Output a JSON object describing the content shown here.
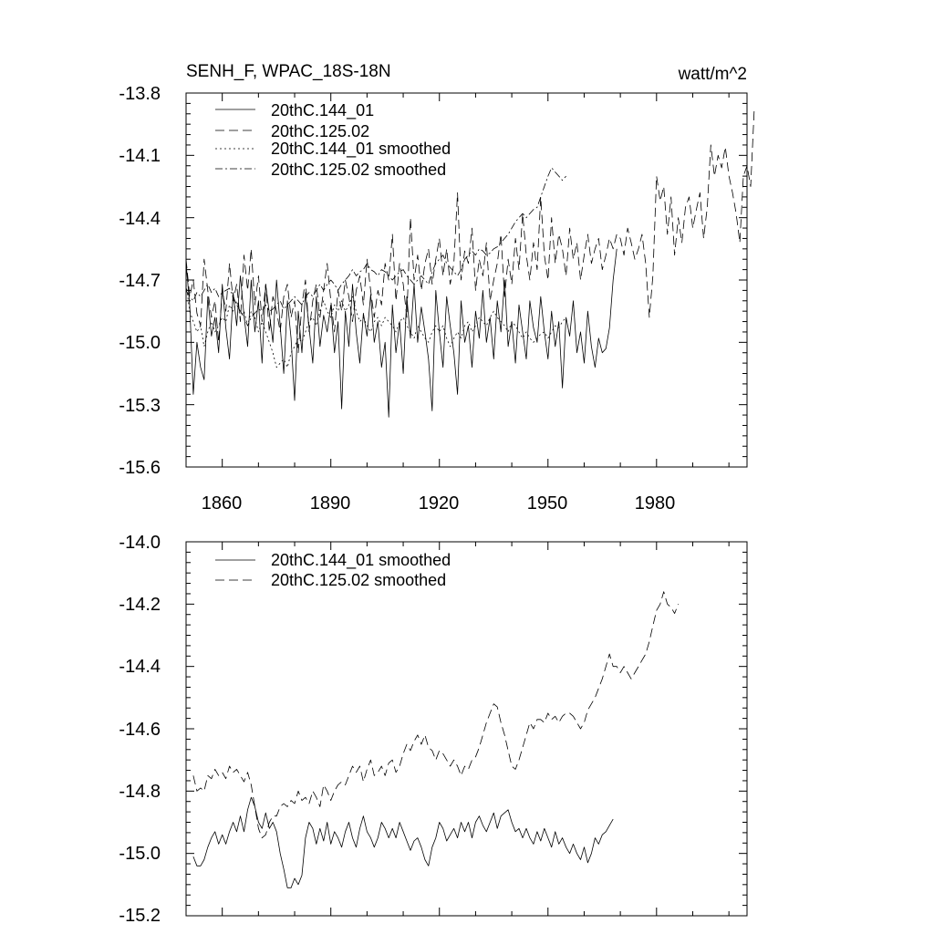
{
  "chart_data": [
    {
      "type": "line",
      "title": "SENH_F, WPAC_18S-18N",
      "units": "watt/m^2",
      "xlim": [
        1850,
        2005
      ],
      "ylim": [
        -15.6,
        -13.8
      ],
      "x_ticks": [
        1860,
        1890,
        1920,
        1950,
        1980
      ],
      "y_ticks": [
        -13.8,
        -14.1,
        -14.4,
        -14.7,
        -15.0,
        -15.3,
        -15.6
      ],
      "y_tick_labels": [
        "-13.8",
        "-14.1",
        "-14.4",
        "-14.7",
        "-15.0",
        "-15.3",
        "-15.6"
      ],
      "x_tick_labels": [
        "1860",
        "1890",
        "1920",
        "1950",
        "1980"
      ],
      "legend_position": "top-left",
      "series": [
        {
          "name": "20thC.144_01",
          "style": "solid",
          "x_start": 1850,
          "values": [
            -14.62,
            -14.82,
            -15.25,
            -15.0,
            -15.12,
            -15.18,
            -14.78,
            -14.97,
            -14.88,
            -15.05,
            -14.72,
            -14.93,
            -15.08,
            -14.76,
            -14.92,
            -14.68,
            -14.87,
            -15.02,
            -14.7,
            -14.95,
            -14.8,
            -15.1,
            -14.72,
            -14.86,
            -15.0,
            -14.7,
            -14.92,
            -15.15,
            -14.8,
            -14.98,
            -15.28,
            -14.85,
            -15.05,
            -14.76,
            -14.93,
            -15.1,
            -14.78,
            -15.02,
            -14.87,
            -14.95,
            -14.82,
            -15.05,
            -14.9,
            -15.32,
            -14.85,
            -15.02,
            -14.72,
            -14.95,
            -15.1,
            -14.86,
            -14.97,
            -14.77,
            -15.0,
            -14.9,
            -15.12,
            -15.0,
            -15.36,
            -14.82,
            -15.05,
            -14.9,
            -15.15,
            -14.78,
            -14.98,
            -14.72,
            -15.0,
            -14.83,
            -14.95,
            -15.08,
            -15.33,
            -14.75,
            -14.95,
            -15.12,
            -14.78,
            -14.92,
            -15.05,
            -15.25,
            -14.8,
            -15.0,
            -14.92,
            -15.12,
            -14.85,
            -14.98,
            -14.75,
            -15.0,
            -14.88,
            -15.08,
            -14.8,
            -14.95,
            -14.7,
            -15.02,
            -14.9,
            -15.1,
            -14.82,
            -14.95,
            -15.08,
            -14.8,
            -14.93,
            -15.0,
            -14.78,
            -14.95,
            -15.08,
            -14.85,
            -15.02,
            -14.9,
            -15.22,
            -14.88,
            -14.97,
            -14.8,
            -15.05,
            -14.95,
            -15.1,
            -14.85,
            -15.02,
            -15.12,
            -14.98,
            -15.05,
            -15.03,
            -14.93,
            -14.7,
            -14.55
          ]
        },
        {
          "name": "20thC.125.02",
          "style": "dashed",
          "x_start": 1850,
          "values": [
            -14.6,
            -14.78,
            -14.7,
            -14.86,
            -14.92,
            -14.6,
            -14.75,
            -14.88,
            -14.8,
            -15.0,
            -14.75,
            -14.85,
            -14.62,
            -14.8,
            -14.72,
            -14.9,
            -14.58,
            -14.75,
            -14.55,
            -14.82,
            -14.68,
            -14.9,
            -14.72,
            -14.95,
            -14.78,
            -14.85,
            -14.95,
            -14.78,
            -14.72,
            -14.88,
            -14.8,
            -15.05,
            -14.82,
            -14.7,
            -14.95,
            -14.8,
            -14.72,
            -14.88,
            -14.75,
            -14.62,
            -14.8,
            -14.95,
            -14.75,
            -14.85,
            -14.7,
            -14.78,
            -14.9,
            -14.75,
            -14.68,
            -14.82,
            -14.6,
            -14.75,
            -14.88,
            -14.75,
            -14.82,
            -14.62,
            -14.7,
            -14.48,
            -14.8,
            -14.62,
            -14.72,
            -14.88,
            -14.4,
            -14.7,
            -14.58,
            -14.75,
            -14.62,
            -14.55,
            -14.72,
            -14.6,
            -14.5,
            -14.68,
            -14.55,
            -14.72,
            -14.62,
            -14.28,
            -14.7,
            -14.56,
            -14.62,
            -14.45,
            -14.75,
            -14.6,
            -14.68,
            -14.52,
            -14.8,
            -14.7,
            -14.62,
            -14.48,
            -14.78,
            -14.6,
            -14.72,
            -14.5,
            -14.65,
            -14.38,
            -14.58,
            -14.7,
            -14.52,
            -14.65,
            -14.3,
            -14.58,
            -14.7,
            -14.4,
            -14.62,
            -14.48,
            -14.55,
            -14.68,
            -14.45,
            -14.6,
            -14.52,
            -14.7,
            -14.58,
            -14.48,
            -14.62,
            -14.55,
            -14.5,
            -14.65,
            -14.58,
            -14.5,
            -14.55,
            -14.48,
            -14.5,
            -14.58,
            -14.45,
            -14.52,
            -14.6,
            -14.55,
            -14.48,
            -14.62,
            -14.88,
            -14.68,
            -14.2,
            -14.32,
            -14.25,
            -14.48,
            -14.3,
            -14.58,
            -14.4,
            -14.52,
            -14.35,
            -14.3,
            -14.45,
            -14.36,
            -14.28,
            -14.5,
            -14.35,
            -14.05,
            -14.2,
            -14.1,
            -14.16,
            -14.06,
            -14.2,
            -14.28,
            -14.38,
            -14.52,
            -14.2,
            -14.15,
            -14.25,
            -13.88
          ]
        },
        {
          "name": "20thC.144_01 smoothed",
          "style": "dotted",
          "x_start": 1850,
          "values": [
            -14.72,
            -14.85,
            -14.9,
            -14.95,
            -14.92,
            -15.02,
            -14.95,
            -14.9,
            -14.95,
            -14.92,
            -14.88,
            -14.9,
            -14.82,
            -14.85,
            -14.8,
            -14.88,
            -14.85,
            -14.92,
            -14.85,
            -14.88,
            -14.95,
            -14.9,
            -14.95,
            -15.0,
            -15.05,
            -15.12,
            -15.1,
            -15.08,
            -15.12,
            -15.05,
            -15.02,
            -14.98,
            -15.0,
            -14.95,
            -14.9,
            -14.88,
            -14.92,
            -14.85,
            -14.8,
            -14.85,
            -14.88,
            -14.82,
            -14.85,
            -14.8,
            -14.85,
            -14.82,
            -14.78,
            -14.85,
            -14.9,
            -14.88,
            -14.92,
            -14.95,
            -14.9,
            -14.88,
            -14.92,
            -14.88,
            -14.9,
            -14.92,
            -14.95,
            -14.9,
            -14.88,
            -14.92,
            -14.95,
            -14.98,
            -14.92,
            -14.95,
            -14.98,
            -15.0,
            -14.95,
            -14.92,
            -14.95,
            -14.92,
            -14.98,
            -15.02,
            -14.98,
            -14.95,
            -14.98,
            -14.92,
            -14.9,
            -14.95,
            -14.92,
            -14.88,
            -14.9,
            -14.92,
            -14.88,
            -14.85,
            -14.88,
            -14.9,
            -14.92,
            -14.95,
            -14.9,
            -14.92,
            -14.95,
            -14.98,
            -14.95,
            -14.98,
            -15.0,
            -14.98,
            -14.96,
            -14.95,
            -14.98,
            -14.95,
            -14.92,
            -14.93,
            -14.9,
            -14.88
          ]
        },
        {
          "name": "20thC.125.02 smoothed",
          "style": "dashdot",
          "x_start": 1850,
          "values": [
            -14.75,
            -14.78,
            -14.8,
            -14.76,
            -14.78,
            -14.75,
            -14.72,
            -14.76,
            -14.74,
            -14.78,
            -14.76,
            -14.75,
            -14.74,
            -14.78,
            -14.82,
            -14.85,
            -14.88,
            -14.92,
            -14.88,
            -14.86,
            -14.84,
            -14.85,
            -14.82,
            -14.85,
            -14.84,
            -14.82,
            -14.8,
            -14.84,
            -14.82,
            -14.8,
            -14.78,
            -14.8,
            -14.82,
            -14.78,
            -14.76,
            -14.78,
            -14.75,
            -14.72,
            -14.75,
            -14.72,
            -14.7,
            -14.72,
            -14.75,
            -14.72,
            -14.7,
            -14.68,
            -14.65,
            -14.68,
            -14.66,
            -14.65,
            -14.62,
            -14.65,
            -14.66,
            -14.68,
            -14.65,
            -14.66,
            -14.68,
            -14.7,
            -14.68,
            -14.66,
            -14.65,
            -14.68,
            -14.7,
            -14.72,
            -14.7,
            -14.68,
            -14.7,
            -14.72,
            -14.66,
            -14.62,
            -14.6,
            -14.58,
            -14.62,
            -14.64,
            -14.66,
            -14.68,
            -14.65,
            -14.6,
            -14.58,
            -14.56,
            -14.58,
            -14.55,
            -14.56,
            -14.58,
            -14.57,
            -14.55,
            -14.54,
            -14.52,
            -14.5,
            -14.48,
            -14.45,
            -14.42,
            -14.4,
            -14.38,
            -14.4,
            -14.38,
            -14.36,
            -14.35,
            -14.3,
            -14.25,
            -14.2,
            -14.16,
            -14.18,
            -14.2,
            -14.22,
            -14.2
          ]
        }
      ]
    },
    {
      "type": "line",
      "title": "",
      "xlim": [
        1850,
        2005
      ],
      "ylim": [
        -15.2,
        -14.0
      ],
      "x_ticks": [
        1860,
        1890,
        1920,
        1950,
        1980
      ],
      "y_ticks": [
        -14.0,
        -14.2,
        -14.4,
        -14.6,
        -14.8,
        -15.0,
        -15.2
      ],
      "y_tick_labels": [
        "-14.0",
        "-14.2",
        "-14.4",
        "-14.6",
        "-14.8",
        "-15.0",
        "-15.2"
      ],
      "legend_position": "top-left",
      "series": [
        {
          "name": "20thC.144_01 smoothed",
          "style": "solid",
          "x_start": 1852,
          "values": [
            -15.01,
            -15.04,
            -15.04,
            -15.02,
            -14.98,
            -14.95,
            -14.93,
            -14.97,
            -14.94,
            -14.97,
            -14.93,
            -14.9,
            -14.93,
            -14.88,
            -14.93,
            -14.86,
            -14.82,
            -14.85,
            -14.9,
            -14.92,
            -14.87,
            -14.92,
            -14.9,
            -14.93,
            -15.0,
            -15.05,
            -15.11,
            -15.11,
            -15.08,
            -15.1,
            -15.07,
            -14.95,
            -14.9,
            -14.92,
            -14.97,
            -14.92,
            -14.96,
            -14.9,
            -14.97,
            -14.93,
            -14.95,
            -14.98,
            -14.93,
            -14.9,
            -14.95,
            -14.98,
            -14.92,
            -14.88,
            -14.93,
            -14.95,
            -14.98,
            -14.95,
            -14.9,
            -14.92,
            -14.95,
            -14.92,
            -14.95,
            -14.9,
            -14.93,
            -14.96,
            -14.99,
            -14.96,
            -14.95,
            -14.98,
            -15.02,
            -15.04,
            -14.98,
            -14.95,
            -14.9,
            -14.92,
            -14.96,
            -14.94,
            -14.92,
            -14.95,
            -14.9,
            -14.93,
            -14.9,
            -14.95,
            -14.9,
            -14.88,
            -14.91,
            -14.93,
            -14.9,
            -14.87,
            -14.92,
            -14.88,
            -14.87,
            -14.86,
            -14.9,
            -14.93,
            -14.92,
            -14.95,
            -14.92,
            -14.95,
            -14.97,
            -14.93,
            -14.96,
            -14.92,
            -14.95,
            -14.98,
            -14.93,
            -14.97,
            -14.95,
            -14.98,
            -15.0,
            -14.97,
            -15.0,
            -15.02,
            -14.98,
            -15.03,
            -15.0,
            -14.95,
            -14.97,
            -14.94,
            -14.93,
            -14.91,
            -14.89
          ]
        },
        {
          "name": "20thC.125.02 smoothed",
          "style": "dashed",
          "x_start": 1852,
          "values": [
            -14.75,
            -14.8,
            -14.79,
            -14.8,
            -14.75,
            -14.76,
            -14.73,
            -14.75,
            -14.74,
            -14.76,
            -14.72,
            -14.74,
            -14.73,
            -14.75,
            -14.77,
            -14.74,
            -14.78,
            -14.85,
            -14.92,
            -14.95,
            -14.94,
            -14.9,
            -14.88,
            -14.88,
            -14.85,
            -14.84,
            -14.85,
            -14.83,
            -14.84,
            -14.8,
            -14.83,
            -14.82,
            -14.84,
            -14.8,
            -14.82,
            -14.85,
            -14.78,
            -14.8,
            -14.83,
            -14.8,
            -14.78,
            -14.77,
            -14.78,
            -14.75,
            -14.72,
            -14.74,
            -14.72,
            -14.77,
            -14.73,
            -14.7,
            -14.75,
            -14.74,
            -14.72,
            -14.75,
            -14.71,
            -14.7,
            -14.74,
            -14.72,
            -14.68,
            -14.65,
            -14.67,
            -14.64,
            -14.62,
            -14.65,
            -14.62,
            -14.66,
            -14.67,
            -14.7,
            -14.67,
            -14.68,
            -14.7,
            -14.72,
            -14.7,
            -14.72,
            -14.75,
            -14.72,
            -14.73,
            -14.7,
            -14.69,
            -14.66,
            -14.62,
            -14.58,
            -14.55,
            -14.52,
            -14.53,
            -14.58,
            -14.62,
            -14.67,
            -14.72,
            -14.73,
            -14.7,
            -14.66,
            -14.62,
            -14.58,
            -14.6,
            -14.57,
            -14.57,
            -14.58,
            -14.55,
            -14.57,
            -14.56,
            -14.58,
            -14.56,
            -14.55,
            -14.55,
            -14.56,
            -14.58,
            -14.6,
            -14.58,
            -14.54,
            -14.52,
            -14.5,
            -14.47,
            -14.44,
            -14.4,
            -14.36,
            -14.4,
            -14.4,
            -14.42,
            -14.4,
            -14.42,
            -14.44,
            -14.42,
            -14.4,
            -14.38,
            -14.36,
            -14.32,
            -14.27,
            -14.22,
            -14.2,
            -14.16,
            -14.2,
            -14.21,
            -14.23,
            -14.2
          ]
        }
      ]
    }
  ]
}
